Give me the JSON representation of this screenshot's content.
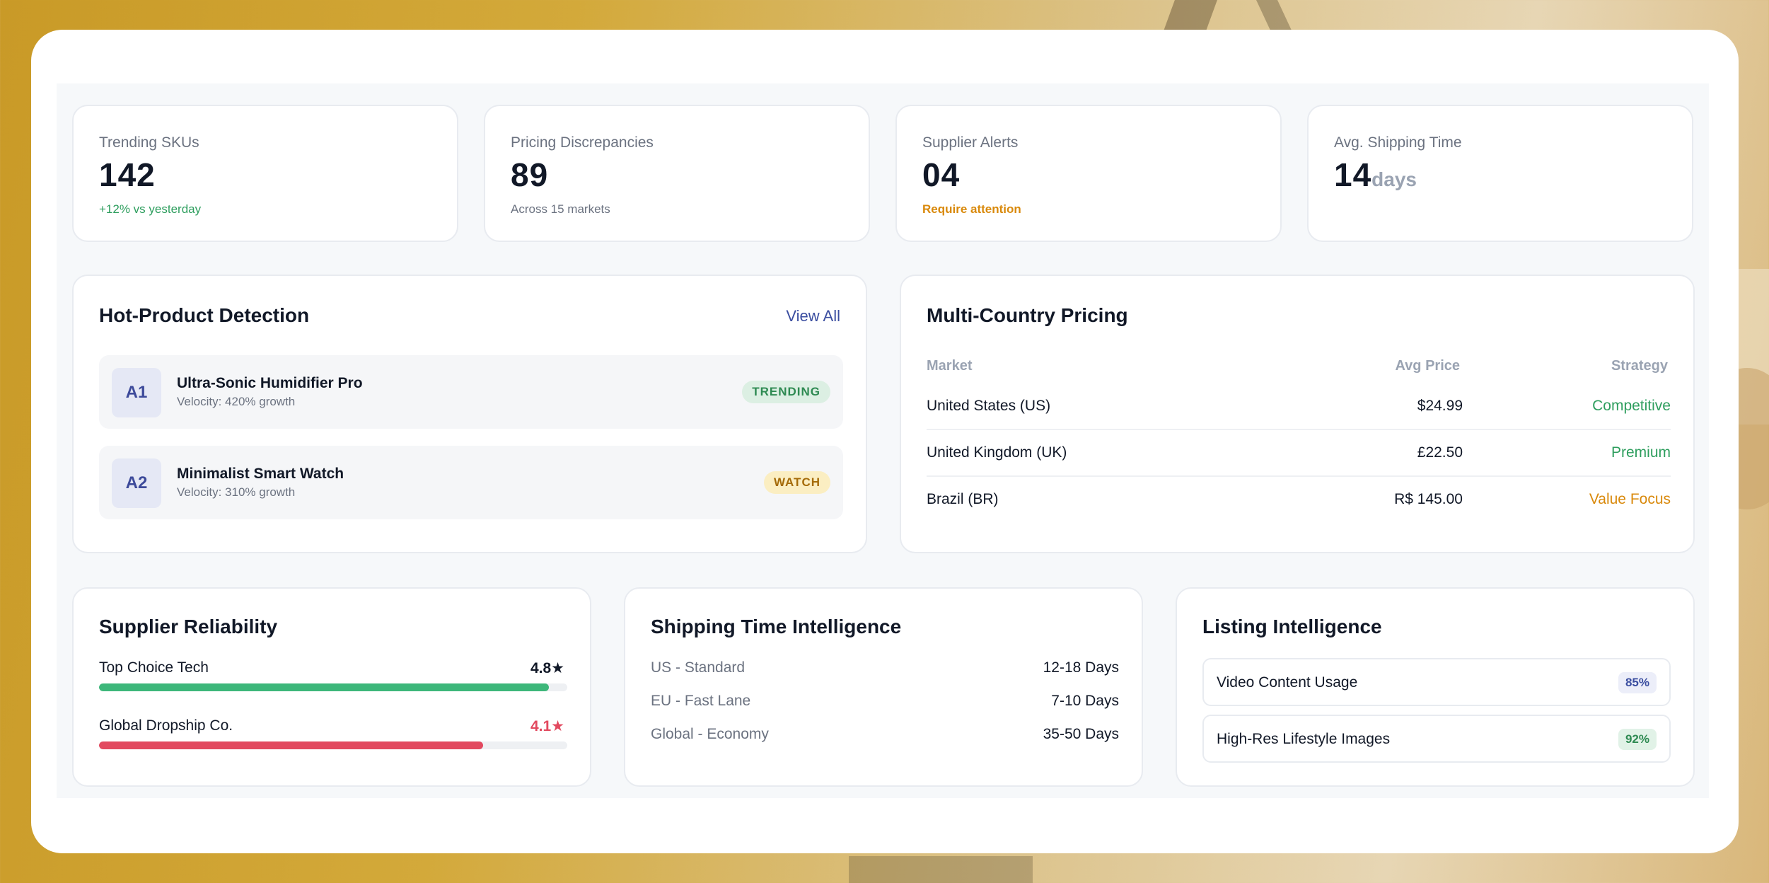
{
  "stats": [
    {
      "label": "Trending SKUs",
      "value": "142",
      "unit": "",
      "sub": "+12% vs yesterday",
      "sub_color": "#2e9e5e"
    },
    {
      "label": "Pricing Discrepancies",
      "value": "89",
      "unit": "",
      "sub": "Across 15 markets",
      "sub_color": "#6b7280"
    },
    {
      "label": "Supplier Alerts",
      "value": "04",
      "unit": "",
      "sub": "Require attention",
      "sub_color": "#d9890b"
    },
    {
      "label": "Avg. Shipping Time",
      "value": "14",
      "unit": "days",
      "sub": ""
    }
  ],
  "hot_products": {
    "title": "Hot-Product Detection",
    "view_all": "View All",
    "items": [
      {
        "badge": "A1",
        "name": "Ultra-Sonic Humidifier Pro",
        "velocity": "Velocity: 420% growth",
        "tag": "TRENDING"
      },
      {
        "badge": "A2",
        "name": "Minimalist Smart Watch",
        "velocity": "Velocity: 310% growth",
        "tag": "WATCH"
      }
    ]
  },
  "pricing": {
    "title": "Multi-Country Pricing",
    "headers": {
      "market": "Market",
      "price": "Avg Price",
      "strategy": "Strategy"
    },
    "rows": [
      {
        "market": "United States (US)",
        "price": "$24.99",
        "strategy": "Competitive",
        "strategy_color": "#2e9e5e"
      },
      {
        "market": "United Kingdom (UK)",
        "price": "£22.50",
        "strategy": "Premium",
        "strategy_color": "#2e9e5e"
      },
      {
        "market": "Brazil (BR)",
        "price": "R$ 145.00",
        "strategy": "Value Focus",
        "strategy_color": "#d9890b"
      }
    ]
  },
  "supplier": {
    "title": "Supplier Reliability",
    "items": [
      {
        "name": "Top Choice Tech",
        "score": "4.8★",
        "level": 0.96,
        "color": "#3db77a",
        "score_color": "#111827"
      },
      {
        "name": "Global Dropship Co.",
        "score": "4.1★",
        "level": 0.82,
        "color": "#e2495f",
        "score_color": "#e2495f"
      }
    ]
  },
  "shipping": {
    "title": "Shipping Time Intelligence",
    "rows": [
      {
        "label": "US - Standard",
        "value": "12-18 Days"
      },
      {
        "label": "EU - Fast Lane",
        "value": "7-10 Days"
      },
      {
        "label": "Global - Economy",
        "value": "35-50 Days"
      }
    ]
  },
  "listing": {
    "title": "Listing Intelligence",
    "items": [
      {
        "label": "Video Content Usage",
        "pct": "85%"
      },
      {
        "label": "High-Res Lifestyle Images",
        "pct": "92%"
      }
    ]
  }
}
